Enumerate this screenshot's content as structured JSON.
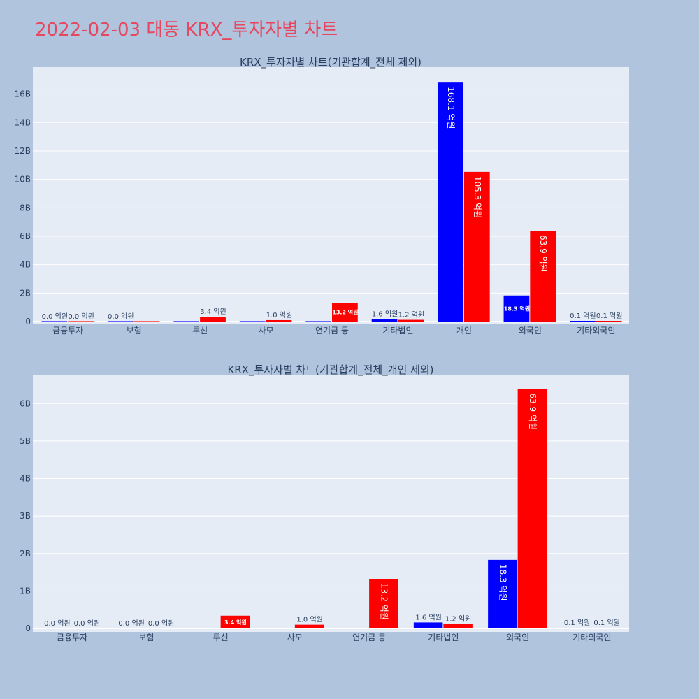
{
  "title": "2022-02-03 대동 KRX_투자자별 차트",
  "chart_data": [
    {
      "type": "bar",
      "title": "KRX_투자자별 차트(기관합계_전체 제외)",
      "categories": [
        "금융투자",
        "보험",
        "투신",
        "사모",
        "연기금 등",
        "기타법인",
        "개인",
        "외국인",
        "기타외국인"
      ],
      "series": [
        {
          "color": "#0000ff",
          "values": [
            0.0,
            0.0,
            0.0,
            0.0,
            0.0,
            0.16,
            16.81,
            1.83,
            0.01
          ]
        },
        {
          "color": "#ff0000",
          "values": [
            0.0,
            0.0,
            0.34,
            0.1,
            1.32,
            0.12,
            10.53,
            6.39,
            0.01
          ]
        }
      ],
      "data_labels": [
        [
          "0.0 억원",
          "0.0 억원",
          "",
          "",
          "",
          "1.6 억원",
          "168.1 억원",
          "18.3 억원",
          "0.1 억원"
        ],
        [
          "0.0 억원",
          "",
          "3.4 억원",
          "1.0 억원",
          "13.2 억원",
          "1.2 억원",
          "105.3 억원",
          "63.9 억원",
          "0.1 억원"
        ]
      ],
      "yticks": [
        "0",
        "2B",
        "4B",
        "6B",
        "8B",
        "10B",
        "12B",
        "14B",
        "16B"
      ],
      "ylim": [
        0,
        17.9
      ],
      "grid": true
    },
    {
      "type": "bar",
      "title": "KRX_투자자별 차트(기관합계_전체_개인 제외)",
      "categories": [
        "금융투자",
        "보험",
        "투신",
        "사모",
        "연기금 등",
        "기타법인",
        "외국인",
        "기타외국인"
      ],
      "series": [
        {
          "color": "#0000ff",
          "values": [
            0.0,
            0.0,
            0.0,
            0.0,
            0.0,
            0.16,
            1.83,
            0.01
          ]
        },
        {
          "color": "#ff0000",
          "values": [
            0.0,
            0.0,
            0.34,
            0.1,
            1.32,
            0.12,
            6.39,
            0.01
          ]
        }
      ],
      "data_labels": [
        [
          "0.0 억원",
          "0.0 억원",
          "",
          "",
          "",
          "1.6 억원",
          "18.3 억원",
          "0.1 억원"
        ],
        [
          "0.0 억원",
          "0.0 억원",
          "3.4 억원",
          "1.0 억원",
          "13.2 억원",
          "1.2 억원",
          "63.9 억원",
          "0.1 억원"
        ]
      ],
      "yticks": [
        "0",
        "1B",
        "2B",
        "3B",
        "4B",
        "5B",
        "6B"
      ],
      "ylim": [
        0,
        6.77
      ],
      "grid": true
    }
  ]
}
